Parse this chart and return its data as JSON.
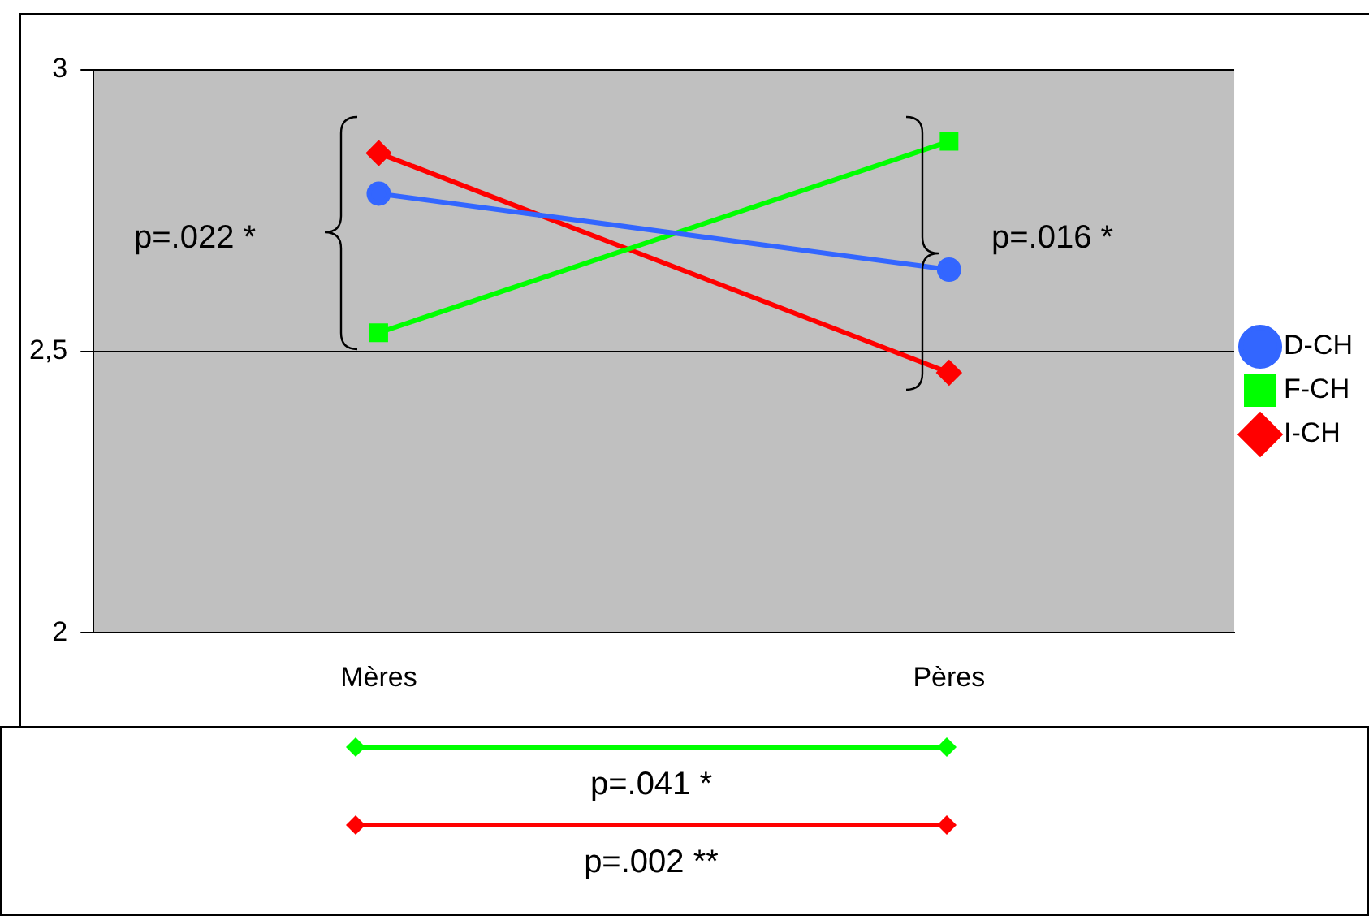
{
  "chart_data": {
    "type": "line",
    "categories": [
      "Mères",
      "Pères"
    ],
    "series": [
      {
        "name": "D-CH",
        "color": "#3366ff",
        "values": [
          2.78,
          2.645
        ],
        "marker": "circle"
      },
      {
        "name": "F-CH",
        "color": "#00ff00",
        "values": [
          2.533,
          2.873
        ],
        "marker": "square"
      },
      {
        "name": "I-CH",
        "color": "#ff0000",
        "values": [
          2.852,
          2.462
        ],
        "marker": "diamond"
      }
    ],
    "ylim": [
      2,
      3
    ],
    "yticks": [
      2,
      {
        "value": 2.5,
        "label": "2,5"
      },
      3
    ],
    "grid": "y",
    "legend": "right",
    "annotations": [
      "p=.022 *",
      "p=.016 *",
      "p=.041 *",
      "p=.002 **"
    ]
  }
}
